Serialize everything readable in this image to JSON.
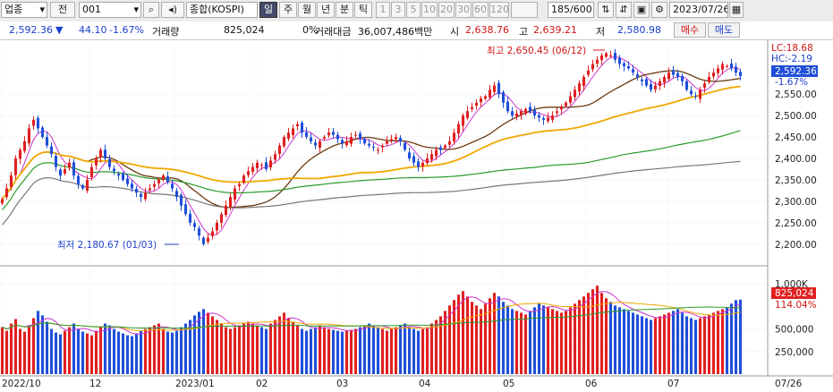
{
  "toolbar": {
    "market_select": "업종",
    "jeon_button": "전",
    "code_input": "001",
    "name": "종합(KOSPI)",
    "period_tabs": [
      "일",
      "주",
      "월",
      "년",
      "분",
      "틱"
    ],
    "active_period": "일",
    "interval_buttons": [
      "1",
      "3",
      "5",
      "10",
      "20",
      "30",
      "60",
      "120"
    ],
    "count": "185/600",
    "date": "2023/07/26"
  },
  "quote": {
    "price": "2,592.36",
    "change": "44.10",
    "change_rate": "-1.67%",
    "volume_label": "거래량",
    "volume": "825,024",
    "volume_rate": "0%",
    "amount_label": "거래대금",
    "amount": "36,007,486백만",
    "open_label": "시",
    "open": "2,638.76",
    "high_label": "고",
    "high": "2,639.21",
    "low_label": "저",
    "low": "2,580.98",
    "buy_label": "매수",
    "sell_label": "매도"
  },
  "chart": {
    "high_annotation": "최고 2,650.45 (06/12)",
    "low_annotation": "최저 2,180.67 (01/03)",
    "lc_label": "LC:18.68",
    "hc_label": "HC:-2.19",
    "price_label": "2,592.36",
    "pct_label": "-1.67%",
    "price_axis_ticks": [
      "2,550.00",
      "2,500.00",
      "2,450.00",
      "2,400.00",
      "2,350.00",
      "2,300.00",
      "2,250.00",
      "2,200.00"
    ],
    "volume_axis_ticks": [
      "1,000K",
      "500,000",
      "250,000"
    ],
    "volume_label": "825,024",
    "volume_pct_label": "114.04%",
    "date_axis_ticks": [
      "2022/10",
      "12",
      "2023/01",
      "02",
      "03",
      "04",
      "05",
      "06",
      "07",
      "07/26"
    ],
    "colors": {
      "up": "#e02020",
      "down": "#1f4fd8",
      "ma5": "#cc33cc",
      "ma20": "#6b3a10",
      "ma60": "#f0a800",
      "ma120": "#2a9a2a",
      "ma240": "#777777"
    }
  },
  "chart_data": {
    "type": "candlestick",
    "price_range": [
      2160,
      2665
    ],
    "volume_range": [
      0,
      1150000
    ],
    "dates": [
      "2022/10",
      "12",
      "2023/01",
      "02",
      "03",
      "04",
      "05",
      "06",
      "07",
      "07/26"
    ],
    "closes": [
      2305,
      2330,
      2360,
      2400,
      2420,
      2440,
      2470,
      2490,
      2470,
      2450,
      2430,
      2410,
      2380,
      2360,
      2375,
      2390,
      2360,
      2340,
      2330,
      2350,
      2380,
      2400,
      2420,
      2400,
      2380,
      2370,
      2360,
      2350,
      2340,
      2330,
      2320,
      2310,
      2320,
      2330,
      2340,
      2350,
      2360,
      2345,
      2330,
      2310,
      2290,
      2270,
      2250,
      2240,
      2220,
      2200,
      2215,
      2230,
      2250,
      2270,
      2290,
      2310,
      2330,
      2340,
      2360,
      2370,
      2380,
      2390,
      2385,
      2375,
      2395,
      2410,
      2430,
      2450,
      2460,
      2470,
      2480,
      2460,
      2450,
      2440,
      2430,
      2440,
      2450,
      2460,
      2455,
      2445,
      2435,
      2440,
      2450,
      2455,
      2445,
      2435,
      2430,
      2425,
      2420,
      2430,
      2440,
      2445,
      2450,
      2440,
      2420,
      2400,
      2390,
      2380,
      2390,
      2400,
      2410,
      2420,
      2420,
      2430,
      2440,
      2460,
      2480,
      2500,
      2510,
      2520,
      2530,
      2540,
      2545,
      2560,
      2570,
      2550,
      2530,
      2510,
      2500,
      2505,
      2510,
      2515,
      2510,
      2500,
      2495,
      2490,
      2495,
      2500,
      2510,
      2520,
      2530,
      2545,
      2560,
      2575,
      2590,
      2605,
      2620,
      2630,
      2640,
      2645,
      2640,
      2630,
      2620,
      2615,
      2610,
      2600,
      2590,
      2580,
      2570,
      2560,
      2570,
      2580,
      2590,
      2600,
      2595,
      2590,
      2580,
      2560,
      2550,
      2545,
      2560,
      2575,
      2590,
      2600,
      2610,
      2620,
      2615,
      2610,
      2600,
      2592
    ],
    "volumes": [
      520000,
      480000,
      560000,
      610000,
      500000,
      470000,
      540000,
      620000,
      700000,
      650000,
      580000,
      500000,
      460000,
      440000,
      480000,
      520000,
      560000,
      500000,
      470000,
      450000,
      430000,
      480000,
      520000,
      560000,
      540000,
      500000,
      470000,
      450000,
      430000,
      420000,
      450000,
      480000,
      500000,
      520000,
      540000,
      560000,
      500000,
      470000,
      460000,
      480000,
      520000,
      560000,
      600000,
      650000,
      690000,
      720000,
      680000,
      640000,
      600000,
      560000,
      520000,
      500000,
      520000,
      540000,
      560000,
      580000,
      560000,
      540000,
      520000,
      500000,
      560000,
      600000,
      640000,
      680000,
      620000,
      580000,
      540000,
      500000,
      480000,
      500000,
      520000,
      540000,
      520000,
      500000,
      490000,
      480000,
      470000,
      480000,
      490000,
      500000,
      520000,
      540000,
      560000,
      540000,
      520000,
      500000,
      480000,
      500000,
      520000,
      540000,
      560000,
      520000,
      500000,
      480000,
      500000,
      520000,
      560000,
      600000,
      640000,
      700000,
      760000,
      820000,
      880000,
      920000,
      860000,
      800000,
      760000,
      720000,
      780000,
      840000,
      900000,
      860000,
      800000,
      760000,
      720000,
      700000,
      680000,
      660000,
      700000,
      740000,
      780000,
      760000,
      740000,
      720000,
      700000,
      680000,
      700000,
      740000,
      780000,
      820000,
      860000,
      900000,
      940000,
      980000,
      900000,
      840000,
      800000,
      760000,
      740000,
      720000,
      700000,
      680000,
      660000,
      640000,
      620000,
      600000,
      620000,
      640000,
      660000,
      680000,
      700000,
      720000,
      680000,
      640000,
      620000,
      600000,
      620000,
      640000,
      660000,
      680000,
      700000,
      720000,
      740000,
      780000,
      820000,
      825024
    ]
  }
}
